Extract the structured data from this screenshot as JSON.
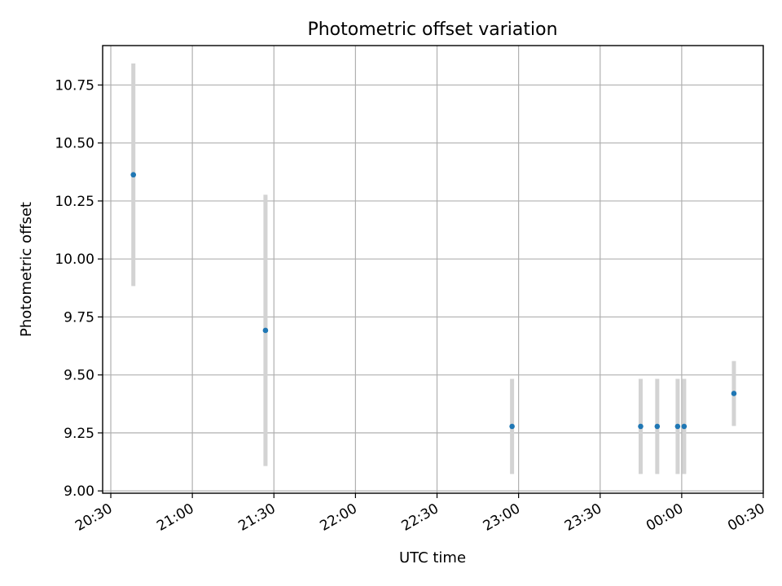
{
  "chart_data": {
    "type": "scatter",
    "title": "Photometric offset variation",
    "xlabel": "UTC time",
    "ylabel": "Photometric offset",
    "x_ticks": [
      "20:30",
      "21:00",
      "21:30",
      "22:00",
      "22:30",
      "23:00",
      "23:30",
      "00:00",
      "00:30"
    ],
    "x_tick_minutes": [
      0,
      30,
      60,
      90,
      120,
      150,
      180,
      210,
      240
    ],
    "xlim_minutes": [
      -3,
      240
    ],
    "y_ticks": [
      "9.00",
      "9.25",
      "9.50",
      "9.75",
      "10.00",
      "10.25",
      "10.50",
      "10.75"
    ],
    "y_tick_values": [
      9.0,
      9.25,
      9.5,
      9.75,
      10.0,
      10.25,
      10.5,
      10.75
    ],
    "ylim": [
      8.99,
      10.92
    ],
    "grid": true,
    "series": [
      {
        "points": [
          {
            "time": "20:38",
            "minutes": 8.3,
            "y": 10.363,
            "err": 0.48
          },
          {
            "time": "21:27",
            "minutes": 56.9,
            "y": 9.692,
            "err": 0.585
          },
          {
            "time": "22:58",
            "minutes": 147.6,
            "y": 9.278,
            "err": 0.205
          },
          {
            "time": "23:45",
            "minutes": 194.9,
            "y": 9.278,
            "err": 0.205
          },
          {
            "time": "23:51",
            "minutes": 201.0,
            "y": 9.278,
            "err": 0.205
          },
          {
            "time": "23:58",
            "minutes": 208.5,
            "y": 9.278,
            "err": 0.205
          },
          {
            "time": "00:01",
            "minutes": 210.9,
            "y": 9.278,
            "err": 0.205
          },
          {
            "time": "00:19",
            "minutes": 229.2,
            "y": 9.42,
            "err": 0.14
          }
        ]
      }
    ],
    "colors": {
      "point": "#1f77b4",
      "errorbar": "#d3d3d3",
      "grid": "#b0b0b0"
    }
  }
}
